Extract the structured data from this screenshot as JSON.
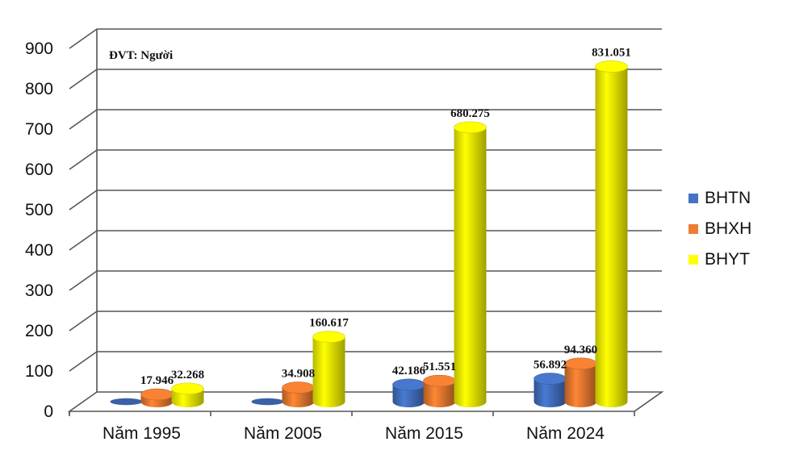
{
  "chart_data": {
    "type": "bar",
    "unit_note": "ĐVT: Người",
    "categories": [
      "Năm 1995",
      "Năm 2005",
      "Năm 2015",
      "Năm 2024"
    ],
    "series": [
      {
        "name": "BHTN",
        "color": "#4472C4",
        "values": [
          0,
          0,
          42.186,
          56.892
        ],
        "labels": [
          "",
          "",
          "42.186",
          "56.892"
        ]
      },
      {
        "name": "BHXH",
        "color": "#ED7D31",
        "values": [
          17.946,
          34.908,
          51.551,
          94.36
        ],
        "labels": [
          "17.946",
          "34.908",
          "51.551",
          "94.360"
        ]
      },
      {
        "name": "BHYT",
        "color": "#FFFF00",
        "values": [
          32.268,
          160.617,
          680.275,
          831.051
        ],
        "labels": [
          "32.268",
          "160.617",
          "680.275",
          "831.051"
        ]
      }
    ],
    "yticks": [
      "0",
      "100",
      "200",
      "300",
      "400",
      "500",
      "600",
      "700",
      "800",
      "900"
    ],
    "ylim": [
      0,
      900
    ],
    "grid": true,
    "legend_position": "right"
  }
}
